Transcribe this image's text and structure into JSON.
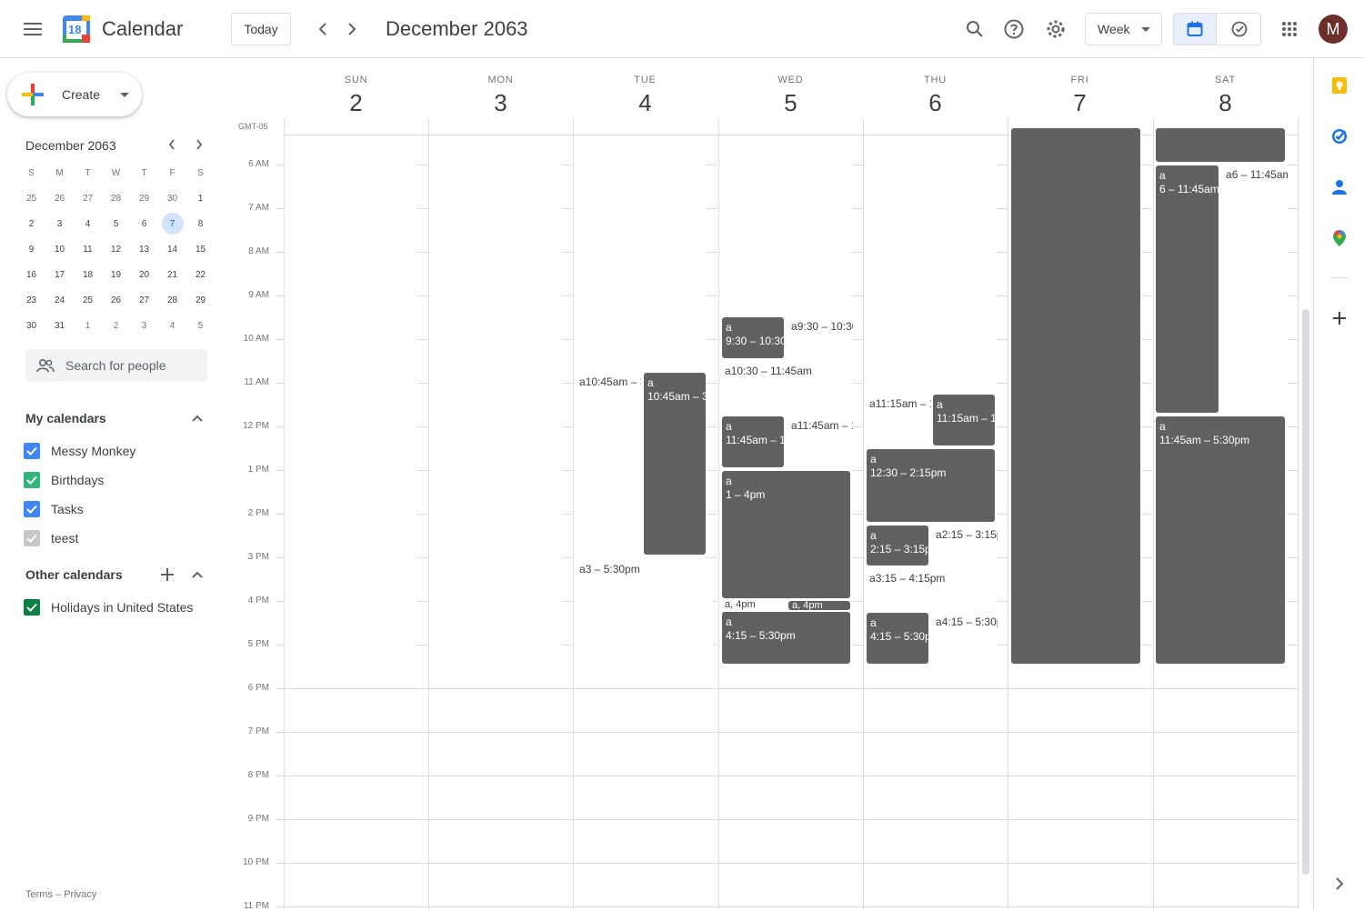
{
  "header": {
    "app_title": "Calendar",
    "logo_day": "18",
    "today_label": "Today",
    "period": "December 2063",
    "view_label": "Week",
    "avatar_letter": "M"
  },
  "sidebar": {
    "create_label": "Create",
    "mini_title": "December 2063",
    "weekday_initials": [
      "S",
      "M",
      "T",
      "W",
      "T",
      "F",
      "S"
    ],
    "mini_days": [
      [
        "25",
        "26",
        "27",
        "28",
        "29",
        "30",
        "1"
      ],
      [
        "2",
        "3",
        "4",
        "5",
        "6",
        "7",
        "8"
      ],
      [
        "9",
        "10",
        "11",
        "12",
        "13",
        "14",
        "15"
      ],
      [
        "16",
        "17",
        "18",
        "19",
        "20",
        "21",
        "22"
      ],
      [
        "23",
        "24",
        "25",
        "26",
        "27",
        "28",
        "29"
      ],
      [
        "30",
        "31",
        "1",
        "2",
        "3",
        "4",
        "5"
      ]
    ],
    "selected_day": "7",
    "search_people_placeholder": "Search for people",
    "my_calendars_title": "My calendars",
    "my_calendars": [
      {
        "label": "Messy Monkey",
        "color": "#4285f4",
        "checked": true
      },
      {
        "label": "Birthdays",
        "color": "#33b679",
        "checked": true
      },
      {
        "label": "Tasks",
        "color": "#4285f4",
        "checked": true
      },
      {
        "label": "teest",
        "color": "#c7c7c7",
        "checked": true
      }
    ],
    "other_calendars_title": "Other calendars",
    "other_calendars": [
      {
        "label": "Holidays in United States",
        "color": "#0b8043",
        "checked": true
      }
    ],
    "footer_terms": "Terms",
    "footer_sep": "–",
    "footer_privacy": "Privacy"
  },
  "grid": {
    "timezone": "GMT-05",
    "days": [
      {
        "dow": "SUN",
        "num": "2"
      },
      {
        "dow": "MON",
        "num": "3"
      },
      {
        "dow": "TUE",
        "num": "4"
      },
      {
        "dow": "WED",
        "num": "5"
      },
      {
        "dow": "THU",
        "num": "6"
      },
      {
        "dow": "FRI",
        "num": "7"
      },
      {
        "dow": "SAT",
        "num": "8"
      }
    ],
    "hours": [
      "6 AM",
      "7 AM",
      "8 AM",
      "9 AM",
      "10 AM",
      "11 AM",
      "12 PM",
      "1 PM",
      "2 PM",
      "3 PM",
      "4 PM",
      "5 PM",
      "6 PM",
      "7 PM",
      "8 PM",
      "9 PM",
      "10 PM",
      "11 PM"
    ],
    "events": [
      {
        "title": "a",
        "time": "10:45am – 3",
        "style": "text"
      },
      {
        "title": "a",
        "time": "10:45am – 3",
        "style": "block"
      },
      {
        "title": "a",
        "time": "3 – 5:30pm",
        "style": "text"
      },
      {
        "title": "a",
        "time": "9:30 – 10:30",
        "style": "block"
      },
      {
        "title": "a",
        "time": "9:30 – 10:30",
        "style": "text"
      },
      {
        "title": "a",
        "time": "10:30 – 11:45am",
        "style": "text"
      },
      {
        "title": "a",
        "time": "11:45am – 1",
        "style": "block"
      },
      {
        "title": "a",
        "time": "11:45am – 1",
        "style": "text"
      },
      {
        "title": "a",
        "time": "1 – 4pm",
        "style": "block"
      },
      {
        "title": "a, 4pm",
        "time": "",
        "style": "text-short"
      },
      {
        "title": "a, 4pm",
        "time": "",
        "style": "block-short"
      },
      {
        "title": "a",
        "time": "4:15 – 5:30pm",
        "style": "block"
      },
      {
        "title": "a",
        "time": "11:15am – 1",
        "style": "text"
      },
      {
        "title": "a",
        "time": "11:15am – 1",
        "style": "block"
      },
      {
        "title": "a",
        "time": "12:30 – 2:15pm",
        "style": "block"
      },
      {
        "title": "a",
        "time": "2:15 – 3:15pm",
        "style": "block"
      },
      {
        "title": "a",
        "time": "2:15 – 3:15pm",
        "style": "text"
      },
      {
        "title": "a",
        "time": "3:15 – 4:15pm",
        "style": "text"
      },
      {
        "title": "a",
        "time": "4:15 – 5:30pm",
        "style": "block"
      },
      {
        "title": "a",
        "time": "4:15 – 5:30pm",
        "style": "text"
      },
      {
        "title": "",
        "time": "",
        "style": "block"
      },
      {
        "title": "",
        "time": "",
        "style": "block"
      },
      {
        "title": "a",
        "time": "6 – 11:45am",
        "style": "block"
      },
      {
        "title": "a",
        "time": "6 – 11:45am",
        "style": "text"
      },
      {
        "title": "a",
        "time": "11:45am – 5:30pm",
        "style": "block"
      }
    ]
  },
  "colors": {
    "event_gray": "#616161",
    "accent_blue": "#1a73e8",
    "selected_day_bg": "#d2e3fc",
    "grid_line": "#dadce0"
  },
  "icons": [
    "menu-icon",
    "calendar-logo",
    "chevron-left-icon",
    "chevron-right-icon",
    "search-icon",
    "help-icon",
    "settings-icon",
    "dropdown-arrow-icon",
    "calendar-view-icon",
    "tasks-view-icon",
    "apps-grid-icon",
    "people-icon",
    "chevron-up-icon",
    "plus-icon",
    "keep-icon",
    "tasks-icon",
    "contacts-icon",
    "maps-icon",
    "expand-panel-icon"
  ]
}
